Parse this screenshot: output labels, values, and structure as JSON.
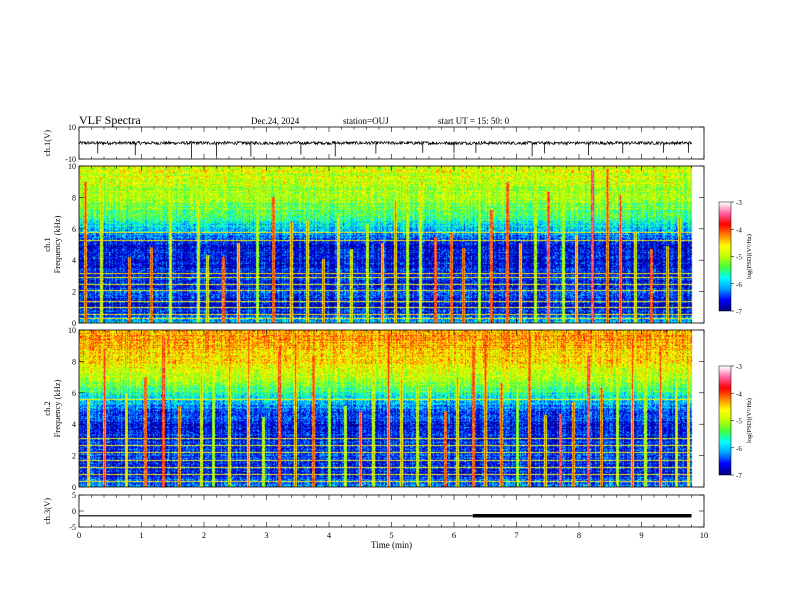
{
  "header": {
    "title": "VLF Spectra",
    "date": "Dec.24, 2024",
    "station": "station=OUJ",
    "start": "start  UT =   15: 50: 0"
  },
  "colors": {
    "colormap": [
      "#000080",
      "#0000ff",
      "#00a0ff",
      "#00ffff",
      "#40ff40",
      "#c0ff00",
      "#ffff00",
      "#ff8000",
      "#ff0000",
      "#ff60a0",
      "#ffffff"
    ],
    "trace": "#000000"
  },
  "chart_data": [
    {
      "type": "line",
      "panel": "ch1-waveform",
      "ylabel": "ch.1(V)",
      "ylim": [
        -10,
        10
      ],
      "yticks": [
        "10",
        "-10"
      ],
      "xlim": [
        0,
        10
      ],
      "baseline": 0,
      "noise_band": 1,
      "spikes_x": [
        0.3,
        0.9,
        1.8,
        2.2,
        2.75,
        3.55,
        4.1,
        4.75,
        5.5,
        6.0,
        6.35,
        7.25,
        7.45,
        8.15,
        8.7,
        9.35,
        9.75
      ]
    },
    {
      "type": "heatmap",
      "panel": "ch1-spectrogram",
      "ylabel": "ch.1\nFrequency (kHz)",
      "xlim": [
        0,
        10
      ],
      "ylim": [
        0,
        10
      ],
      "yticks": [
        "0",
        "2",
        "4",
        "6",
        "8",
        "10"
      ],
      "data_end_min": 9.8,
      "colorbar": {
        "label": "log(PSD)(V²/Hz)",
        "range": [
          -7,
          -3
        ],
        "ticks": [
          "-7",
          "-6",
          "-5",
          "-4",
          "-3"
        ]
      },
      "background_log_psd": [
        [
          0,
          -6.0
        ],
        [
          1,
          -6.7
        ],
        [
          2,
          -6.5
        ],
        [
          3,
          -6.6
        ],
        [
          4,
          -6.7
        ],
        [
          5,
          -6.6
        ],
        [
          6,
          -6.0
        ],
        [
          7,
          -5.4
        ],
        [
          8,
          -5.1
        ],
        [
          9,
          -4.9
        ],
        [
          10,
          -4.8
        ]
      ],
      "tonal_lines_khz": [
        0.3,
        0.6,
        1.0,
        1.4,
        2.1,
        2.5,
        2.9,
        3.2,
        5.3,
        5.8
      ],
      "sferics_min": [
        0.1,
        0.35,
        0.8,
        1.15,
        1.45,
        1.9,
        2.05,
        2.3,
        2.55,
        2.85,
        3.1,
        3.4,
        3.65,
        3.9,
        4.15,
        4.35,
        4.6,
        4.85,
        5.05,
        5.25,
        5.45,
        5.7,
        5.95,
        6.15,
        6.4,
        6.6,
        6.85,
        7.05,
        7.3,
        7.5,
        7.75,
        7.95,
        8.2,
        8.45,
        8.65,
        8.9,
        9.15,
        9.4,
        9.6
      ]
    },
    {
      "type": "heatmap",
      "panel": "ch2-spectrogram",
      "ylabel": "ch.2\nFrequency (kHz)",
      "xlim": [
        0,
        10
      ],
      "ylim": [
        0,
        10
      ],
      "yticks": [
        "0",
        "2",
        "4",
        "6",
        "8",
        "10"
      ],
      "data_end_min": 9.8,
      "colorbar": {
        "label": "log(PSD)(V²/Hz)",
        "range": [
          -7,
          -3
        ],
        "ticks": [
          "-7",
          "-6",
          "-5",
          "-4",
          "-3"
        ]
      },
      "background_log_psd": [
        [
          0,
          -6.2
        ],
        [
          1,
          -6.6
        ],
        [
          2,
          -6.5
        ],
        [
          3,
          -6.6
        ],
        [
          4,
          -6.6
        ],
        [
          5,
          -6.3
        ],
        [
          6,
          -5.6
        ],
        [
          7,
          -5.0
        ],
        [
          8,
          -4.6
        ],
        [
          9,
          -4.4
        ],
        [
          10,
          -4.3
        ]
      ],
      "tonal_lines_khz": [
        0.4,
        0.8,
        1.3,
        1.7,
        2.2,
        2.7,
        3.1,
        5.6
      ],
      "sferics_min": [
        0.15,
        0.4,
        0.75,
        1.05,
        1.35,
        1.6,
        1.95,
        2.15,
        2.4,
        2.7,
        2.95,
        3.2,
        3.45,
        3.75,
        4.0,
        4.25,
        4.5,
        4.7,
        4.95,
        5.15,
        5.4,
        5.6,
        5.85,
        6.05,
        6.3,
        6.5,
        6.75,
        7.0,
        7.2,
        7.45,
        7.7,
        7.9,
        8.15,
        8.35,
        8.6,
        8.85,
        9.05,
        9.3,
        9.55,
        9.75
      ]
    },
    {
      "type": "line",
      "panel": "ch3-waveform",
      "ylabel": "ch.3(V)",
      "ylim": [
        -5,
        5
      ],
      "yticks": [
        "5",
        "0",
        "-5"
      ],
      "xlim": [
        0,
        10
      ],
      "value": -1.5,
      "thick_from": 6.3,
      "thick_to": 9.8,
      "xlabel": "Time (min)",
      "xticks": [
        "0",
        "1",
        "2",
        "3",
        "4",
        "5",
        "6",
        "7",
        "8",
        "9",
        "10"
      ]
    }
  ]
}
